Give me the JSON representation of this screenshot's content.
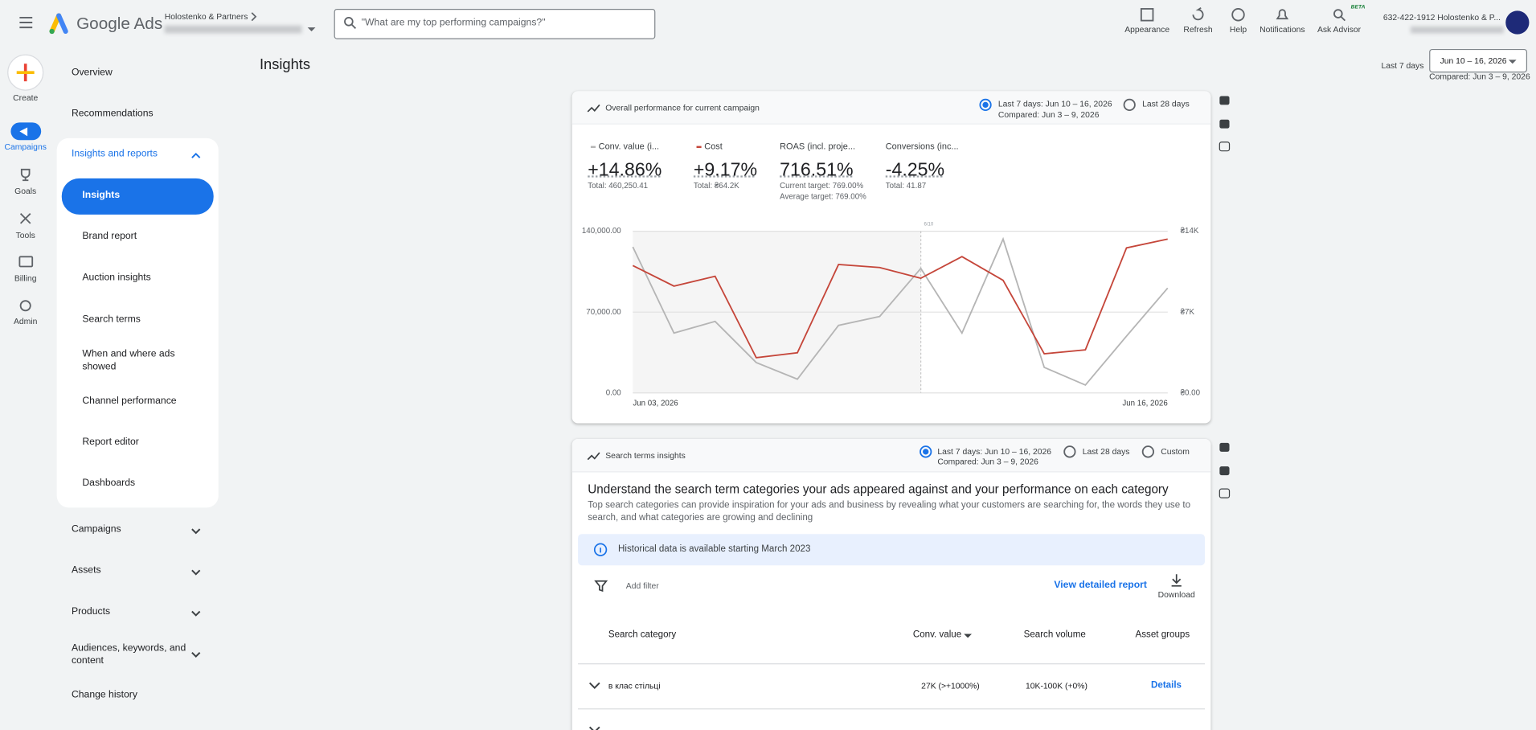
{
  "header": {
    "product": "Google Ads",
    "account_name": "Holostenko & Partners",
    "search_placeholder": "\"What are my top performing campaigns?\"",
    "actions": [
      "Appearance",
      "Refresh",
      "Help",
      "Notifications",
      "Ask Advisor"
    ],
    "beta": "BETA",
    "account_id": "632-422-1912 Holostenko & P..."
  },
  "rail": [
    "Create",
    "Campaigns",
    "Goals",
    "Tools",
    "Billing",
    "Admin"
  ],
  "nav": {
    "top": [
      "Overview",
      "Recommendations"
    ],
    "section": "Insights and reports",
    "section_items": [
      "Insights",
      "Brand report",
      "Auction insights",
      "Search terms",
      "When and where ads showed",
      "Channel performance",
      "Report editor",
      "Dashboards"
    ],
    "groups": [
      "Campaigns",
      "Assets",
      "Products",
      "Audiences, keywords, and content"
    ],
    "bottom": "Change history"
  },
  "page": {
    "title": "Insights",
    "range_label": "Last 7 days",
    "range": "Jun 10 – 16, 2026",
    "compared": "Compared: Jun 3 – 9, 2026"
  },
  "performance_card": {
    "title": "Overall performance for current campaign",
    "option_1": "Last 7 days: Jun 10 – 16, 2026",
    "option_1_sub": "Compared: Jun 3 – 9, 2026",
    "option_2": "Last 28 days",
    "metrics": [
      {
        "value": "+14.86%",
        "notes": [
          "Total: 460,250.41"
        ]
      },
      {
        "value": "+9.17%",
        "notes": [
          "Total: ₴64.2K"
        ]
      },
      {
        "name": "ROAS (incl. proje...",
        "value": "716.51%",
        "notes": [
          "Current target: 769.00%",
          "Average target: 769.00%"
        ]
      },
      {
        "name": "Conversions (inc...",
        "value": "-4.25%",
        "notes": [
          "Total: 41.87"
        ]
      }
    ],
    "chart": {
      "type": "line",
      "categories": [
        "Jun 03, 2026",
        null,
        null,
        null,
        null,
        null,
        null,
        null,
        null,
        null,
        null,
        null,
        null,
        "Jun 16, 2026"
      ],
      "annotation": "6/10",
      "ylim": [
        0,
        140000
      ],
      "yticks": [
        {
          "value": 0,
          "label": "0.00"
        },
        {
          "value": 70000,
          "label": "70,000.00"
        },
        {
          "value": 140000,
          "label": "140,000.00"
        }
      ],
      "y2lim": [
        0,
        14000
      ],
      "y2ticks": [
        {
          "value": 0,
          "label": "₴0.00"
        },
        {
          "value": 7000,
          "label": "₴7K"
        },
        {
          "value": 14000,
          "label": "₴14K"
        }
      ],
      "grid": true,
      "series": [
        {
          "name": "Conv. value (i...",
          "color": "#b5b5b5",
          "values": [
            126400,
            51800,
            61900,
            26300,
            11900,
            58500,
            66200,
            107800,
            51800,
            133200,
            22100,
            6800,
            49200,
            90800
          ]
        },
        {
          "name": "Cost",
          "color": "#c5463a",
          "axis": "y2",
          "values": [
            11030,
            9250,
            10100,
            3050,
            3480,
            11120,
            10860,
            9930,
            11800,
            9750,
            3390,
            3730,
            12560,
            13320
          ]
        }
      ]
    }
  },
  "search_terms_card": {
    "title": "Search terms insights",
    "option_1": "Last 7 days: Jun 10 – 16, 2026",
    "option_1_sub": "Compared: Jun 3 – 9, 2026",
    "option_2": "Last 28 days",
    "option_3": "Custom",
    "heading": "Understand the search term categories your ads appeared against and your performance on each category",
    "description": "Top search categories can provide inspiration for your ads and business by revealing what your customers are searching for, the words they use to search, and what categories are growing and declining",
    "notice": "Historical data is available starting March 2023",
    "filter": "Add filter",
    "view_report": "View detailed report",
    "download": "Download",
    "columns": [
      "Search category",
      "Conv. value",
      "Search volume",
      "Asset groups"
    ],
    "rows": [
      [
        "в клас стільці",
        "27K (>+1000%)",
        "10K-100K (+0%)",
        "Details"
      ]
    ]
  }
}
